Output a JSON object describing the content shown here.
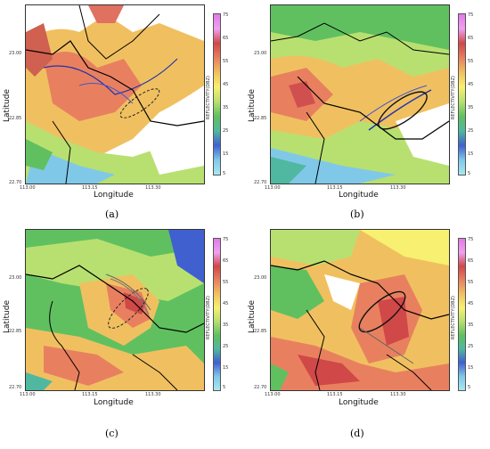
{
  "panels": [
    {
      "id": "a",
      "label": "(a)",
      "xlabel": "Longitude",
      "ylabel": "Latitude",
      "xticks": [
        "113.00",
        "113.15",
        "113.30"
      ],
      "yticks": [
        "23.00",
        "22.85",
        "22.70"
      ]
    },
    {
      "id": "b",
      "label": "(b)",
      "xlabel": "Longitude",
      "ylabel": "Latitude",
      "xticks": [
        "113.00",
        "113.15",
        "113.30"
      ],
      "yticks": [
        "23.00",
        "22.85",
        "22.70"
      ]
    },
    {
      "id": "c",
      "label": "(c)",
      "xlabel": "Longitude",
      "ylabel": "Latitude",
      "xticks": [
        "113.00",
        "113.15",
        "113.30"
      ],
      "yticks": [
        "23.00",
        "22.85",
        "22.70"
      ]
    },
    {
      "id": "d",
      "label": "(d)",
      "xlabel": "Longitude",
      "ylabel": "Latitude",
      "xticks": [
        "113.00",
        "113.15",
        "113.30"
      ],
      "yticks": [
        "23.00",
        "22.85",
        "22.70"
      ]
    }
  ],
  "colorbar": {
    "label": "REFLECTIVITY(DBZ)",
    "ticks": [
      "75",
      "65",
      "55",
      "45",
      "35",
      "25",
      "15",
      "5"
    ],
    "colors": [
      "#e07ae8",
      "#f0a0f0",
      "#d04848",
      "#e88060",
      "#f0c060",
      "#f8f070",
      "#b8e070",
      "#60c060",
      "#50b8a0",
      "#4060d0",
      "#80c8e8",
      "#a8e8f0"
    ]
  }
}
